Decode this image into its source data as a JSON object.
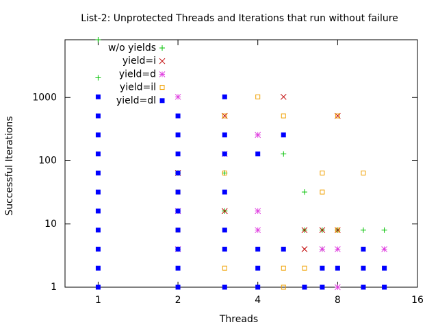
{
  "chart_data": {
    "type": "scatter",
    "title": "List-2: Unprotected Threads and Iterations that run without failure",
    "x_label": "Threads",
    "y_label": "Successful Iterations",
    "x_log": true,
    "y_log": true,
    "xlim": [
      0.75,
      16
    ],
    "ylim": [
      1,
      8192
    ],
    "xticks": [
      1,
      2,
      4,
      8,
      16
    ],
    "yticks": [
      1,
      10,
      100,
      1000
    ],
    "legend": "top-left",
    "series": [
      {
        "name": "w/o yields",
        "color": "#00c000",
        "marker": "plus",
        "x": [
          1,
          1,
          2,
          3,
          3,
          5,
          6,
          6,
          7,
          7,
          8,
          10,
          12
        ],
        "values": [
          8192,
          2048,
          64,
          64,
          16,
          128,
          32,
          8,
          8,
          4,
          8,
          8,
          8
        ]
      },
      {
        "name": "yield=i",
        "color": "#c00000",
        "marker": "cross",
        "x": [
          2,
          3,
          3,
          5,
          6,
          6,
          7,
          8,
          8
        ],
        "values": [
          64,
          512,
          16,
          1024,
          8,
          4,
          8,
          512,
          8
        ]
      },
      {
        "name": "yield=d",
        "color": "#e040e0",
        "marker": "star",
        "x": [
          2,
          2,
          2,
          3,
          4,
          4,
          4,
          7,
          8,
          8,
          12
        ],
        "values": [
          1024,
          16,
          4,
          128,
          256,
          16,
          8,
          4,
          4,
          1,
          4
        ]
      },
      {
        "name": "yield=il",
        "color": "#f0a000",
        "marker": "square-open",
        "x": [
          2,
          2,
          2,
          3,
          3,
          3,
          4,
          5,
          5,
          5,
          6,
          7,
          7,
          8,
          8,
          10
        ],
        "values": [
          64,
          32,
          8,
          512,
          64,
          2,
          1024,
          512,
          2,
          1,
          2,
          64,
          32,
          512,
          8,
          64
        ]
      },
      {
        "name": "yield=dl",
        "color": "#0000ff",
        "marker": "square-filled",
        "x": [
          1,
          1,
          1,
          1,
          1,
          1,
          1,
          1,
          1,
          1,
          1,
          2,
          2,
          2,
          2,
          2,
          2,
          2,
          2,
          2,
          2,
          3,
          3,
          3,
          3,
          3,
          3,
          3,
          4,
          4,
          4,
          4,
          5,
          5,
          6,
          7,
          7,
          8,
          10,
          10,
          10,
          12,
          12
        ],
        "values": [
          1,
          2,
          4,
          8,
          16,
          32,
          64,
          128,
          256,
          512,
          1024,
          1,
          2,
          4,
          8,
          16,
          32,
          64,
          128,
          256,
          512,
          1024,
          256,
          128,
          32,
          8,
          4,
          1,
          128,
          4,
          2,
          1,
          256,
          4,
          1,
          2,
          1,
          2,
          4,
          2,
          1,
          2,
          1
        ]
      }
    ]
  }
}
